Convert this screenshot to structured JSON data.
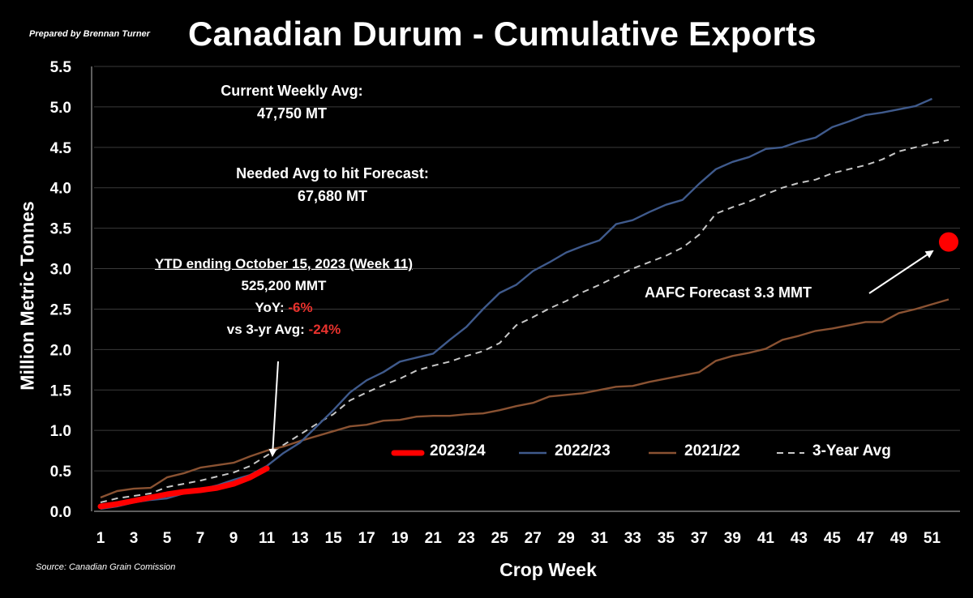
{
  "header": {
    "prepared_by": "Prepared by Brennan Turner",
    "title": "Canadian Durum - Cumulative Exports",
    "source": "Source: Canadian Grain Comission"
  },
  "annotations": {
    "weekly_avg_label": "Current Weekly Avg:",
    "weekly_avg_value": "47,750 MT",
    "needed_avg_label": "Needed Avg to hit Forecast:",
    "needed_avg_value": "67,680 MT",
    "ytd_header": "YTD ending October 15, 2023 (Week 11)",
    "ytd_value": "525,200 MMT",
    "yoy_label": "YoY: ",
    "yoy_value": "-6%",
    "vs_avg_label": "vs 3-yr Avg: ",
    "vs_avg_value": "-24%",
    "forecast_label": "AAFC Forecast 3.3 MMT"
  },
  "chart_data": {
    "type": "line",
    "title": "Canadian Durum - Cumulative Exports",
    "xlabel": "Crop Week",
    "ylabel": "Million Metric Tonnes",
    "xlim": [
      1,
      52
    ],
    "ylim": [
      0,
      5.5
    ],
    "x_ticks": [
      1,
      3,
      5,
      7,
      9,
      11,
      13,
      15,
      17,
      19,
      21,
      23,
      25,
      27,
      29,
      31,
      33,
      35,
      37,
      39,
      41,
      43,
      45,
      47,
      49,
      51
    ],
    "y_ticks": [
      "0.0",
      "0.5",
      "1.0",
      "1.5",
      "2.0",
      "2.5",
      "3.0",
      "3.5",
      "4.0",
      "4.5",
      "5.0",
      "5.5"
    ],
    "grid": "horizontal",
    "legend_position": "bottom-right",
    "series": [
      {
        "name": "2023/24",
        "color": "#ff0000",
        "style": "thick",
        "values": [
          0.06,
          0.09,
          0.13,
          0.17,
          0.21,
          0.24,
          0.26,
          0.29,
          0.34,
          0.42,
          0.53
        ]
      },
      {
        "name": "2022/23",
        "color": "#3f5a8c",
        "style": "solid",
        "values": [
          0.03,
          0.06,
          0.11,
          0.14,
          0.16,
          0.22,
          0.27,
          0.32,
          0.39,
          0.45,
          0.56,
          0.72,
          0.85,
          1.05,
          1.25,
          1.47,
          1.62,
          1.72,
          1.85,
          1.9,
          1.95,
          2.12,
          2.28,
          2.5,
          2.7,
          2.8,
          2.97,
          3.08,
          3.2,
          3.28,
          3.35,
          3.55,
          3.6,
          3.7,
          3.79,
          3.85,
          4.05,
          4.23,
          4.32,
          4.38,
          4.48,
          4.5,
          4.57,
          4.62,
          4.75,
          4.82,
          4.9,
          4.93,
          4.97,
          5.01,
          5.1
        ]
      },
      {
        "name": "2021/22",
        "color": "#8a5232",
        "style": "solid",
        "values": [
          0.17,
          0.25,
          0.28,
          0.29,
          0.42,
          0.47,
          0.54,
          0.57,
          0.6,
          0.68,
          0.75,
          0.8,
          0.87,
          0.93,
          0.99,
          1.05,
          1.07,
          1.12,
          1.13,
          1.17,
          1.18,
          1.18,
          1.2,
          1.21,
          1.25,
          1.3,
          1.34,
          1.42,
          1.44,
          1.46,
          1.5,
          1.54,
          1.55,
          1.6,
          1.64,
          1.68,
          1.72,
          1.86,
          1.92,
          1.96,
          2.01,
          2.12,
          2.17,
          2.23,
          2.26,
          2.3,
          2.34,
          2.34,
          2.45,
          2.5,
          2.56,
          2.62
        ]
      },
      {
        "name": "3-Year Avg",
        "color": "#c8c8c8",
        "style": "dashed",
        "values": [
          0.11,
          0.16,
          0.19,
          0.22,
          0.3,
          0.34,
          0.38,
          0.43,
          0.48,
          0.56,
          0.69,
          0.82,
          0.95,
          1.08,
          1.2,
          1.37,
          1.47,
          1.56,
          1.64,
          1.74,
          1.8,
          1.85,
          1.92,
          1.98,
          2.08,
          2.3,
          2.4,
          2.51,
          2.6,
          2.71,
          2.8,
          2.9,
          3.0,
          3.08,
          3.16,
          3.26,
          3.42,
          3.68,
          3.76,
          3.83,
          3.92,
          4.0,
          4.06,
          4.1,
          4.18,
          4.23,
          4.28,
          4.35,
          4.45,
          4.5,
          4.55,
          4.59
        ]
      }
    ],
    "forecast_point": {
      "x": 52,
      "y": 3.33,
      "color": "#ff0000"
    }
  }
}
